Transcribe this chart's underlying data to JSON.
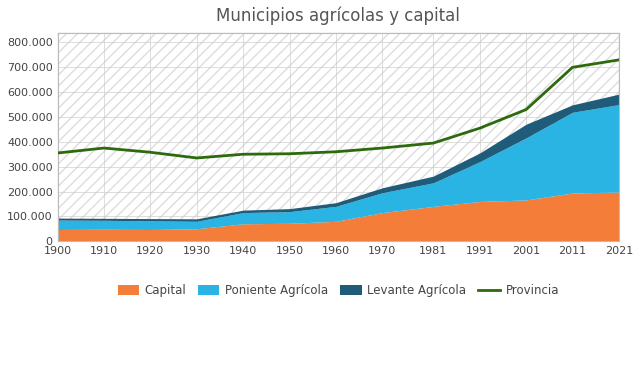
{
  "title": "Municipios agrícolas y capital",
  "years": [
    1900,
    1910,
    1920,
    1930,
    1940,
    1950,
    1960,
    1970,
    1981,
    1991,
    2001,
    2011,
    2021
  ],
  "capital": [
    47000,
    48000,
    47000,
    50000,
    70000,
    72000,
    80000,
    115000,
    140000,
    160000,
    166000,
    194000,
    198000
  ],
  "poniente": [
    38000,
    36000,
    35000,
    30000,
    45000,
    47000,
    60000,
    80000,
    95000,
    160000,
    250000,
    325000,
    352000
  ],
  "levante": [
    8000,
    8000,
    9000,
    10000,
    10000,
    12000,
    15000,
    20000,
    27000,
    35000,
    55000,
    30000,
    42000
  ],
  "provincia": [
    355000,
    375000,
    358000,
    335000,
    350000,
    352000,
    360000,
    375000,
    395000,
    455000,
    530000,
    700000,
    730000
  ],
  "capital_color": "#f47d3a",
  "poniente_color": "#29b4e3",
  "levante_color": "#1f5c7a",
  "provincia_color": "#2d6a0d",
  "background_color": "#ffffff",
  "plot_bg_color": "#ffffff",
  "ylim": [
    0,
    840000
  ],
  "yticks": [
    0,
    100000,
    200000,
    300000,
    400000,
    500000,
    600000,
    700000,
    800000
  ],
  "legend_labels": [
    "Capital",
    "Poniente Agrícola",
    "Levante Agrícola",
    "Provincia"
  ],
  "title_color": "#555555",
  "title_fontsize": 12,
  "grid_color": "#cccccc",
  "tick_color": "#444444",
  "spine_color": "#bbbbbb"
}
